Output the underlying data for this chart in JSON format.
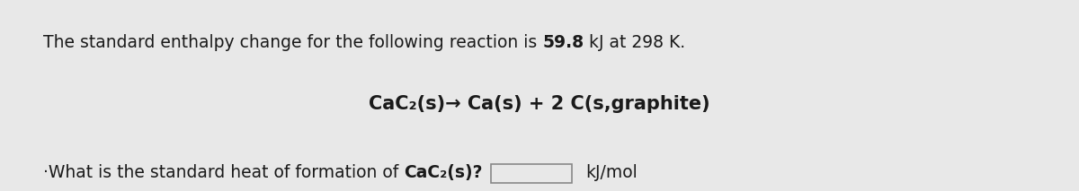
{
  "background_color": "#e8e8e8",
  "fig_width": 12.0,
  "fig_height": 2.13,
  "line1_normal": "The standard enthalpy change for the following reaction is ",
  "line1_bold": "59.8",
  "line1_after": " kJ at 298 K.",
  "line2": "CaC₂(s)→ Ca(s) + 2 C(s,graphite)",
  "line3_prefix": "·What is the standard heat of formation of ",
  "line3_bold": "CaC₂(s)?",
  "line3_unit": "kJ/mol",
  "font_size_line1": 13.5,
  "font_size_line2": 15,
  "font_size_line3": 13.5,
  "text_color": "#1a1a1a",
  "box_facecolor": "#e8e8e8",
  "box_edgecolor": "#888888",
  "font_family": "DejaVu Sans"
}
